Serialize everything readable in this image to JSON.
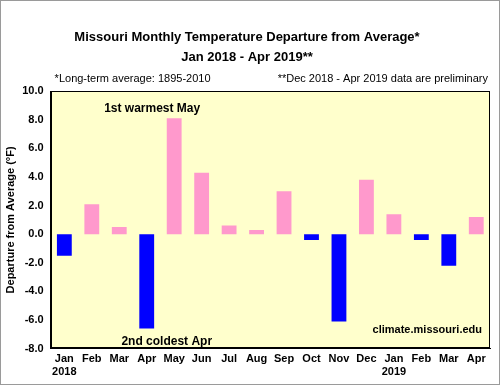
{
  "chart_data": {
    "type": "bar",
    "title": "Missouri Monthly Temperature Departure from Average*",
    "subtitle": "Jan 2018 - Apr 2019**",
    "y_label": "Departure from Average (°F)",
    "notes": [
      "*Long-term average: 1895-2010",
      "**Dec 2018 - Apr 2019 data are preliminary",
      "climate.missouri.edu"
    ],
    "annotations": [
      "1st warmest May",
      "2nd coldest Apr"
    ],
    "categories": [
      "Jan",
      "Feb",
      "Mar",
      "Apr",
      "May",
      "Jun",
      "Jul",
      "Aug",
      "Sep",
      "Oct",
      "Nov",
      "Dec",
      "Jan",
      "Feb",
      "Mar",
      "Apr"
    ],
    "years": [
      "2018",
      null,
      null,
      null,
      null,
      null,
      null,
      null,
      null,
      null,
      null,
      null,
      "2019",
      null,
      null,
      null
    ],
    "values": [
      -1.5,
      2.1,
      0.5,
      -6.6,
      8.1,
      4.3,
      0.6,
      0.3,
      3.0,
      -0.4,
      -6.1,
      3.8,
      1.4,
      -0.4,
      -2.2,
      1.2
    ],
    "colors": [
      "#0000ff",
      "#ff99cc",
      "#ff99cc",
      "#0000ff",
      "#ff99cc",
      "#ff99cc",
      "#ff99cc",
      "#ff99cc",
      "#ff99cc",
      "#0000ff",
      "#0000ff",
      "#ff99cc",
      "#ff99cc",
      "#0000ff",
      "#0000ff",
      "#ff99cc"
    ],
    "ylim": [
      -8,
      10
    ],
    "yticks": [
      {
        "value": -8,
        "label": "-8.0"
      },
      {
        "value": -6,
        "label": "-6.0"
      },
      {
        "value": -4,
        "label": "-4.0"
      },
      {
        "value": -2,
        "label": "-2.0"
      },
      {
        "value": 0,
        "label": "0.0"
      },
      {
        "value": 2,
        "label": "2.0"
      },
      {
        "value": 4,
        "label": "4.0"
      },
      {
        "value": 6,
        "label": "6.0"
      },
      {
        "value": 8,
        "label": "8.0"
      },
      {
        "value": 10,
        "label": "10.0"
      }
    ],
    "grid": false
  }
}
